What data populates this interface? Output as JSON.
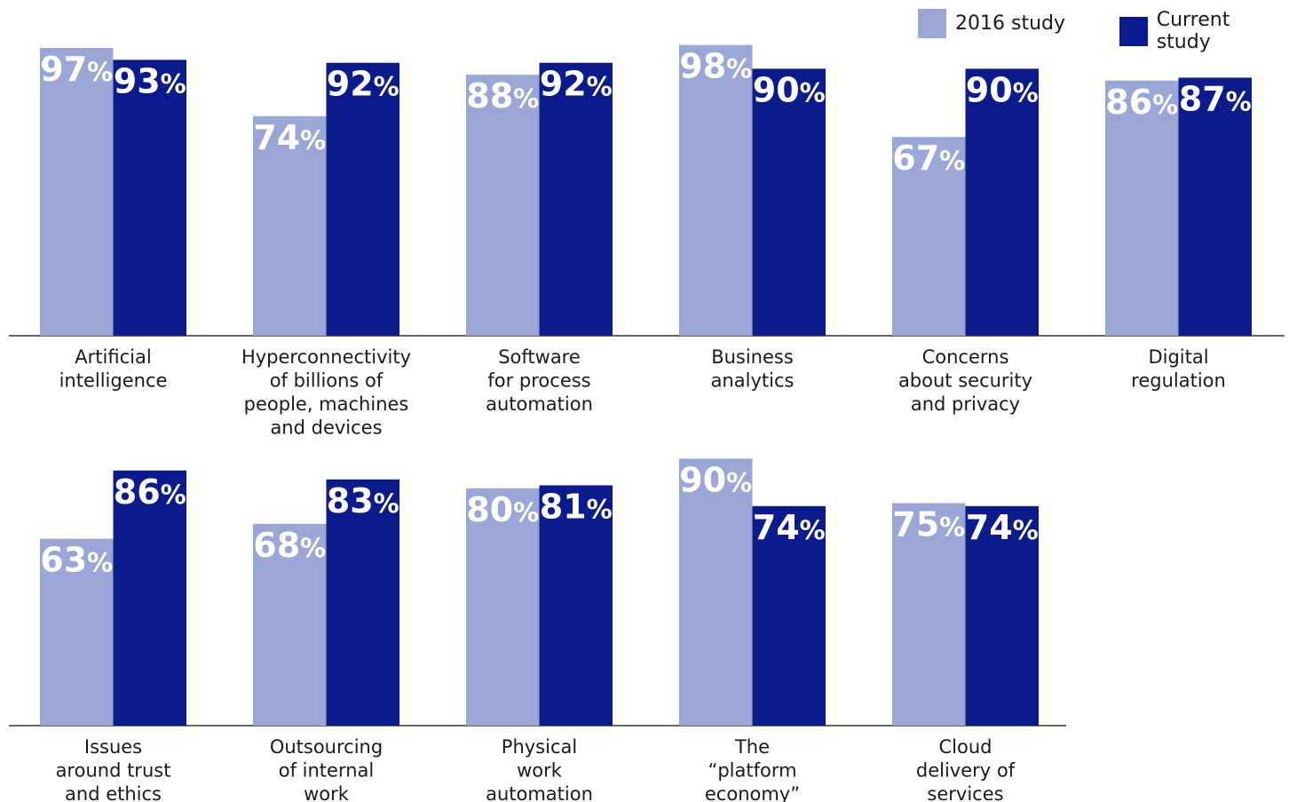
{
  "colors": {
    "study_2016": "#9aa6d6",
    "current": "#0b1a8c",
    "axis": "#333333"
  },
  "chart_data": {
    "type": "bar",
    "title": "",
    "xlabel": "",
    "ylabel": "",
    "ylim": [
      0,
      100
    ],
    "grid": false,
    "legend_position": "top-right",
    "series": [
      {
        "name": "2016 study"
      },
      {
        "name": "Current study"
      }
    ],
    "groups": [
      {
        "categories": [
          [
            "Artificial",
            "intelligence"
          ],
          [
            "Hyperconnectivity",
            "of billions of",
            "people, machines",
            "and devices"
          ],
          [
            "Software",
            "for process",
            "automation"
          ],
          [
            "Business",
            "analytics"
          ],
          [
            "Concerns",
            "about security",
            "and privacy"
          ],
          [
            "Digital",
            "regulation"
          ]
        ],
        "study_2016": [
          97,
          74,
          88,
          98,
          67,
          86
        ],
        "current": [
          93,
          92,
          92,
          90,
          90,
          87
        ]
      },
      {
        "categories": [
          [
            "Issues",
            "around trust",
            "and ethics"
          ],
          [
            "Outsourcing",
            "of internal",
            "work"
          ],
          [
            "Physical",
            "work",
            "automation"
          ],
          [
            "The",
            "“platform",
            "economy”"
          ],
          [
            "Cloud",
            "delivery of",
            "services"
          ]
        ],
        "study_2016": [
          63,
          68,
          80,
          90,
          75
        ],
        "current": [
          86,
          83,
          81,
          74,
          74
        ]
      }
    ]
  }
}
